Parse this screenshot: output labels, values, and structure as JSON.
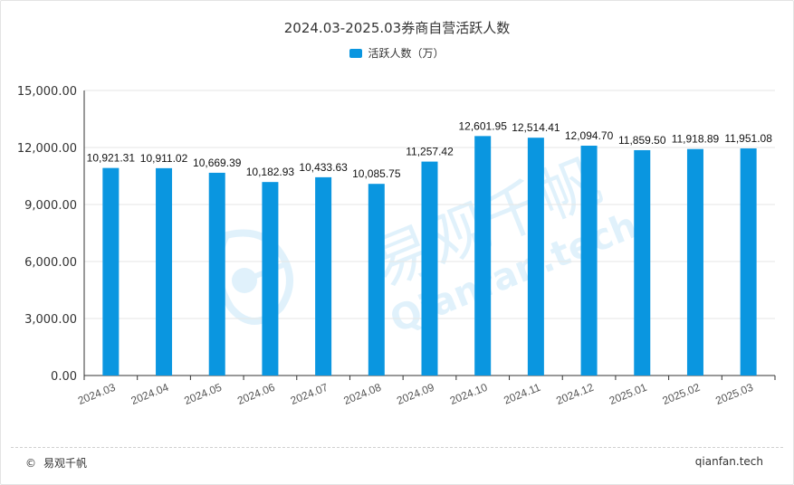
{
  "chart_data": {
    "type": "bar",
    "title": "2024.03-2025.03券商自营活跃人数",
    "legend": [
      "活跃人数（万）"
    ],
    "categories": [
      "2024.03",
      "2024.04",
      "2024.05",
      "2024.06",
      "2024.07",
      "2024.08",
      "2024.09",
      "2024.10",
      "2024.11",
      "2024.12",
      "2025.01",
      "2025.02",
      "2025.03"
    ],
    "values": [
      10921.31,
      10911.02,
      10669.39,
      10182.93,
      10433.63,
      10085.75,
      11257.42,
      12601.95,
      12514.41,
      12094.7,
      11859.5,
      11918.89,
      11951.08
    ],
    "value_labels": [
      "10,921.31",
      "10,911.02",
      "10,669.39",
      "10,182.93",
      "10,433.63",
      "10,085.75",
      "11,257.42",
      "12,601.95",
      "12,514.41",
      "12,094.70",
      "11,859.50",
      "11,918.89",
      "11,951.08"
    ],
    "yticks": [
      0,
      3000,
      6000,
      9000,
      12000,
      15000
    ],
    "ytick_labels": [
      "0.00",
      "3,000.00",
      "6,000.00",
      "9,000.00",
      "12,000.00",
      "15,000.00"
    ],
    "ylim": [
      0,
      15000
    ],
    "xlabel": "",
    "ylabel": "",
    "bar_color": "#0a96e0",
    "legend_position": "top-center"
  },
  "watermark": {
    "text_cn": "易观千帆",
    "text_en": "Qianfan.tech"
  },
  "footer": {
    "copyright_symbol": "©",
    "brand": "易观千帆",
    "site": "qianfan.tech"
  }
}
